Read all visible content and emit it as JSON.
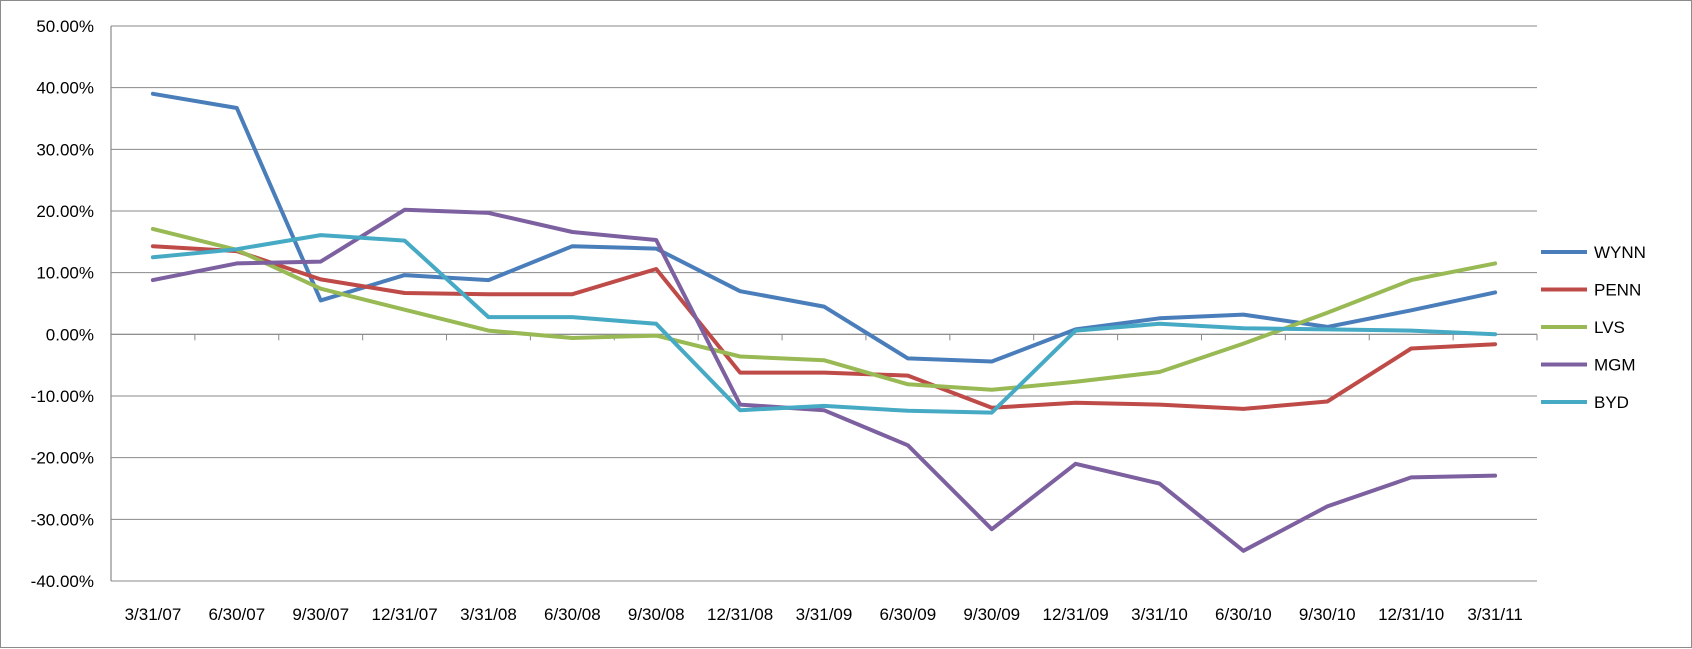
{
  "chart_data": {
    "type": "line",
    "title": "",
    "xlabel": "",
    "ylabel": "",
    "categories": [
      "3/31/07",
      "6/30/07",
      "9/30/07",
      "12/31/07",
      "3/31/08",
      "6/30/08",
      "9/30/08",
      "12/31/08",
      "3/31/09",
      "6/30/09",
      "9/30/09",
      "12/31/09",
      "3/31/10",
      "6/30/10",
      "9/30/10",
      "12/31/10",
      "3/31/11"
    ],
    "ylim": [
      -40,
      50
    ],
    "y_ticks": [
      "50.00%",
      "40.00%",
      "30.00%",
      "20.00%",
      "10.00%",
      "0.00%",
      "-10.00%",
      "-20.00%",
      "-30.00%",
      "-40.00%"
    ],
    "y_tick_values": [
      50,
      40,
      30,
      20,
      10,
      0,
      -10,
      -20,
      -30,
      -40
    ],
    "grid": true,
    "legend_position": "right",
    "series": [
      {
        "name": "WYNN",
        "color": "#4a7ebb",
        "values": [
          39.0,
          36.7,
          5.5,
          9.6,
          8.8,
          14.3,
          13.9,
          7.0,
          4.5,
          -3.9,
          -4.4,
          0.8,
          2.6,
          3.2,
          1.2,
          3.9,
          6.8
        ]
      },
      {
        "name": "PENN",
        "color": "#be4b48",
        "values": [
          14.3,
          13.5,
          8.9,
          6.7,
          6.5,
          6.5,
          10.6,
          -6.2,
          -6.2,
          -6.7,
          -11.9,
          -11.1,
          -11.4,
          -12.1,
          -10.9,
          -2.3,
          -1.6
        ]
      },
      {
        "name": "LVS",
        "color": "#98b954",
        "values": [
          17.1,
          13.7,
          7.4,
          4.0,
          0.6,
          -0.6,
          -0.2,
          -3.6,
          -4.2,
          -8.1,
          -9.0,
          -7.7,
          -6.1,
          -1.5,
          3.5,
          8.8,
          11.5
        ]
      },
      {
        "name": "MGM",
        "color": "#7d60a0",
        "values": [
          8.8,
          11.5,
          11.8,
          20.2,
          19.7,
          16.6,
          15.3,
          -11.4,
          -12.3,
          -18.0,
          -31.6,
          -21.0,
          -24.2,
          -35.1,
          -27.9,
          -23.2,
          -22.9
        ]
      },
      {
        "name": "BYD",
        "color": "#46aac5",
        "values": [
          12.5,
          13.8,
          16.1,
          15.2,
          2.8,
          2.8,
          1.7,
          -12.3,
          -11.6,
          -12.4,
          -12.7,
          0.6,
          1.7,
          1.0,
          0.8,
          0.6,
          0.0
        ]
      }
    ]
  }
}
